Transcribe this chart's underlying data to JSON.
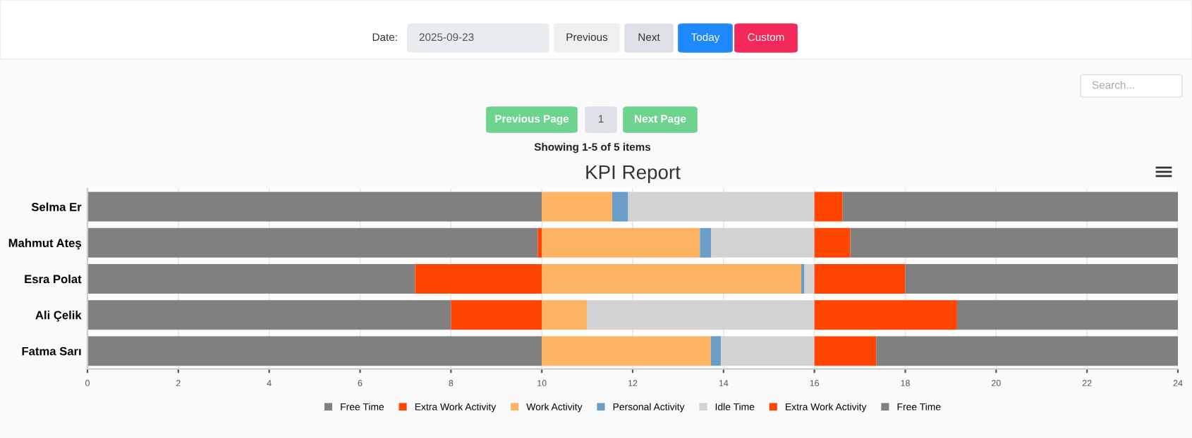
{
  "chart_data": {
    "type": "bar",
    "orientation": "horizontal",
    "stacked": true,
    "title": "KPI Report",
    "categories": [
      "Selma Er",
      "Mahmut Ateş",
      "Esra Polat",
      "Ali Çelik",
      "Fatma Sarı"
    ],
    "series": [
      {
        "name": "Free Time",
        "color": "#808080",
        "values": [
          10,
          9.91,
          7.21,
          8,
          10
        ]
      },
      {
        "name": "Extra Work Activity",
        "color": "#ff4500",
        "values": [
          0,
          0.09,
          2.79,
          2,
          0
        ]
      },
      {
        "name": "Work Activity",
        "color": "#fdb462",
        "values": [
          1.55,
          3.48,
          5.71,
          1.0,
          3.72
        ]
      },
      {
        "name": "Personal Activity",
        "color": "#6a9ec8",
        "values": [
          0.35,
          0.25,
          0.07,
          0,
          0.22
        ]
      },
      {
        "name": "Idle Time",
        "color": "#d3d3d3",
        "values": [
          4.1,
          2.27,
          0.22,
          5.0,
          2.06
        ]
      },
      {
        "name": "Extra Work Activity",
        "color": "#ff4500",
        "values": [
          0.62,
          0.79,
          2.0,
          3.14,
          1.36
        ]
      },
      {
        "name": "Free Time",
        "color": "#808080",
        "values": [
          7.38,
          7.21,
          6.0,
          4.86,
          6.64
        ]
      }
    ],
    "xlim": [
      0,
      24
    ],
    "xticks": [
      0,
      2,
      4,
      6,
      8,
      10,
      12,
      14,
      16,
      18,
      20,
      22,
      24
    ],
    "grid": "x",
    "legend": "bottom",
    "annotations": [
      "Date:",
      "2025-09-23",
      "Previous",
      "Next",
      "Today",
      "Custom",
      "Search...",
      "Previous Page",
      "1",
      "Next Page",
      "Showing 1-5 of 5 items"
    ]
  }
}
